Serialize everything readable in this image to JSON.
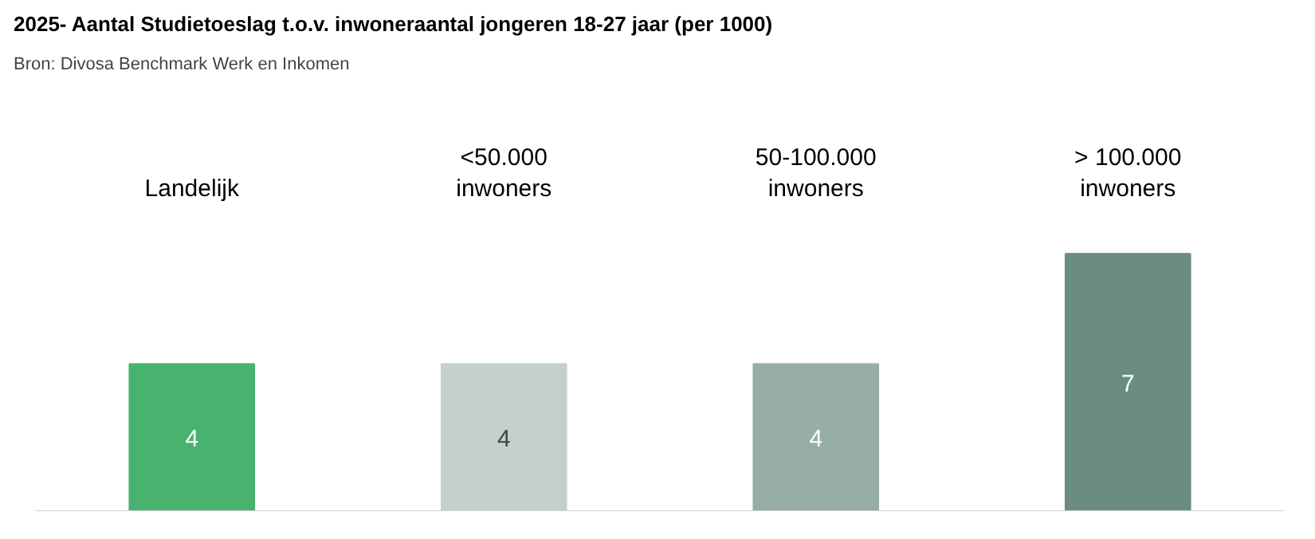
{
  "chart_data": {
    "type": "bar",
    "title": "2025- Aantal Studietoeslag t.o.v. inwoneraantal jongeren 18-27 jaar (per 1000)",
    "subtitle": "Bron: Divosa Benchmark Werk en Inkomen",
    "categories": [
      "Landelijk",
      "<50.000\ninwoners",
      "50-100.000\ninwoners",
      "> 100.000\ninwoners"
    ],
    "values": [
      4,
      4,
      4,
      7
    ],
    "colors": [
      "#48b26f",
      "#c5cfcc",
      "#97ada7",
      "#6a8d80"
    ],
    "data_labels": true
  }
}
